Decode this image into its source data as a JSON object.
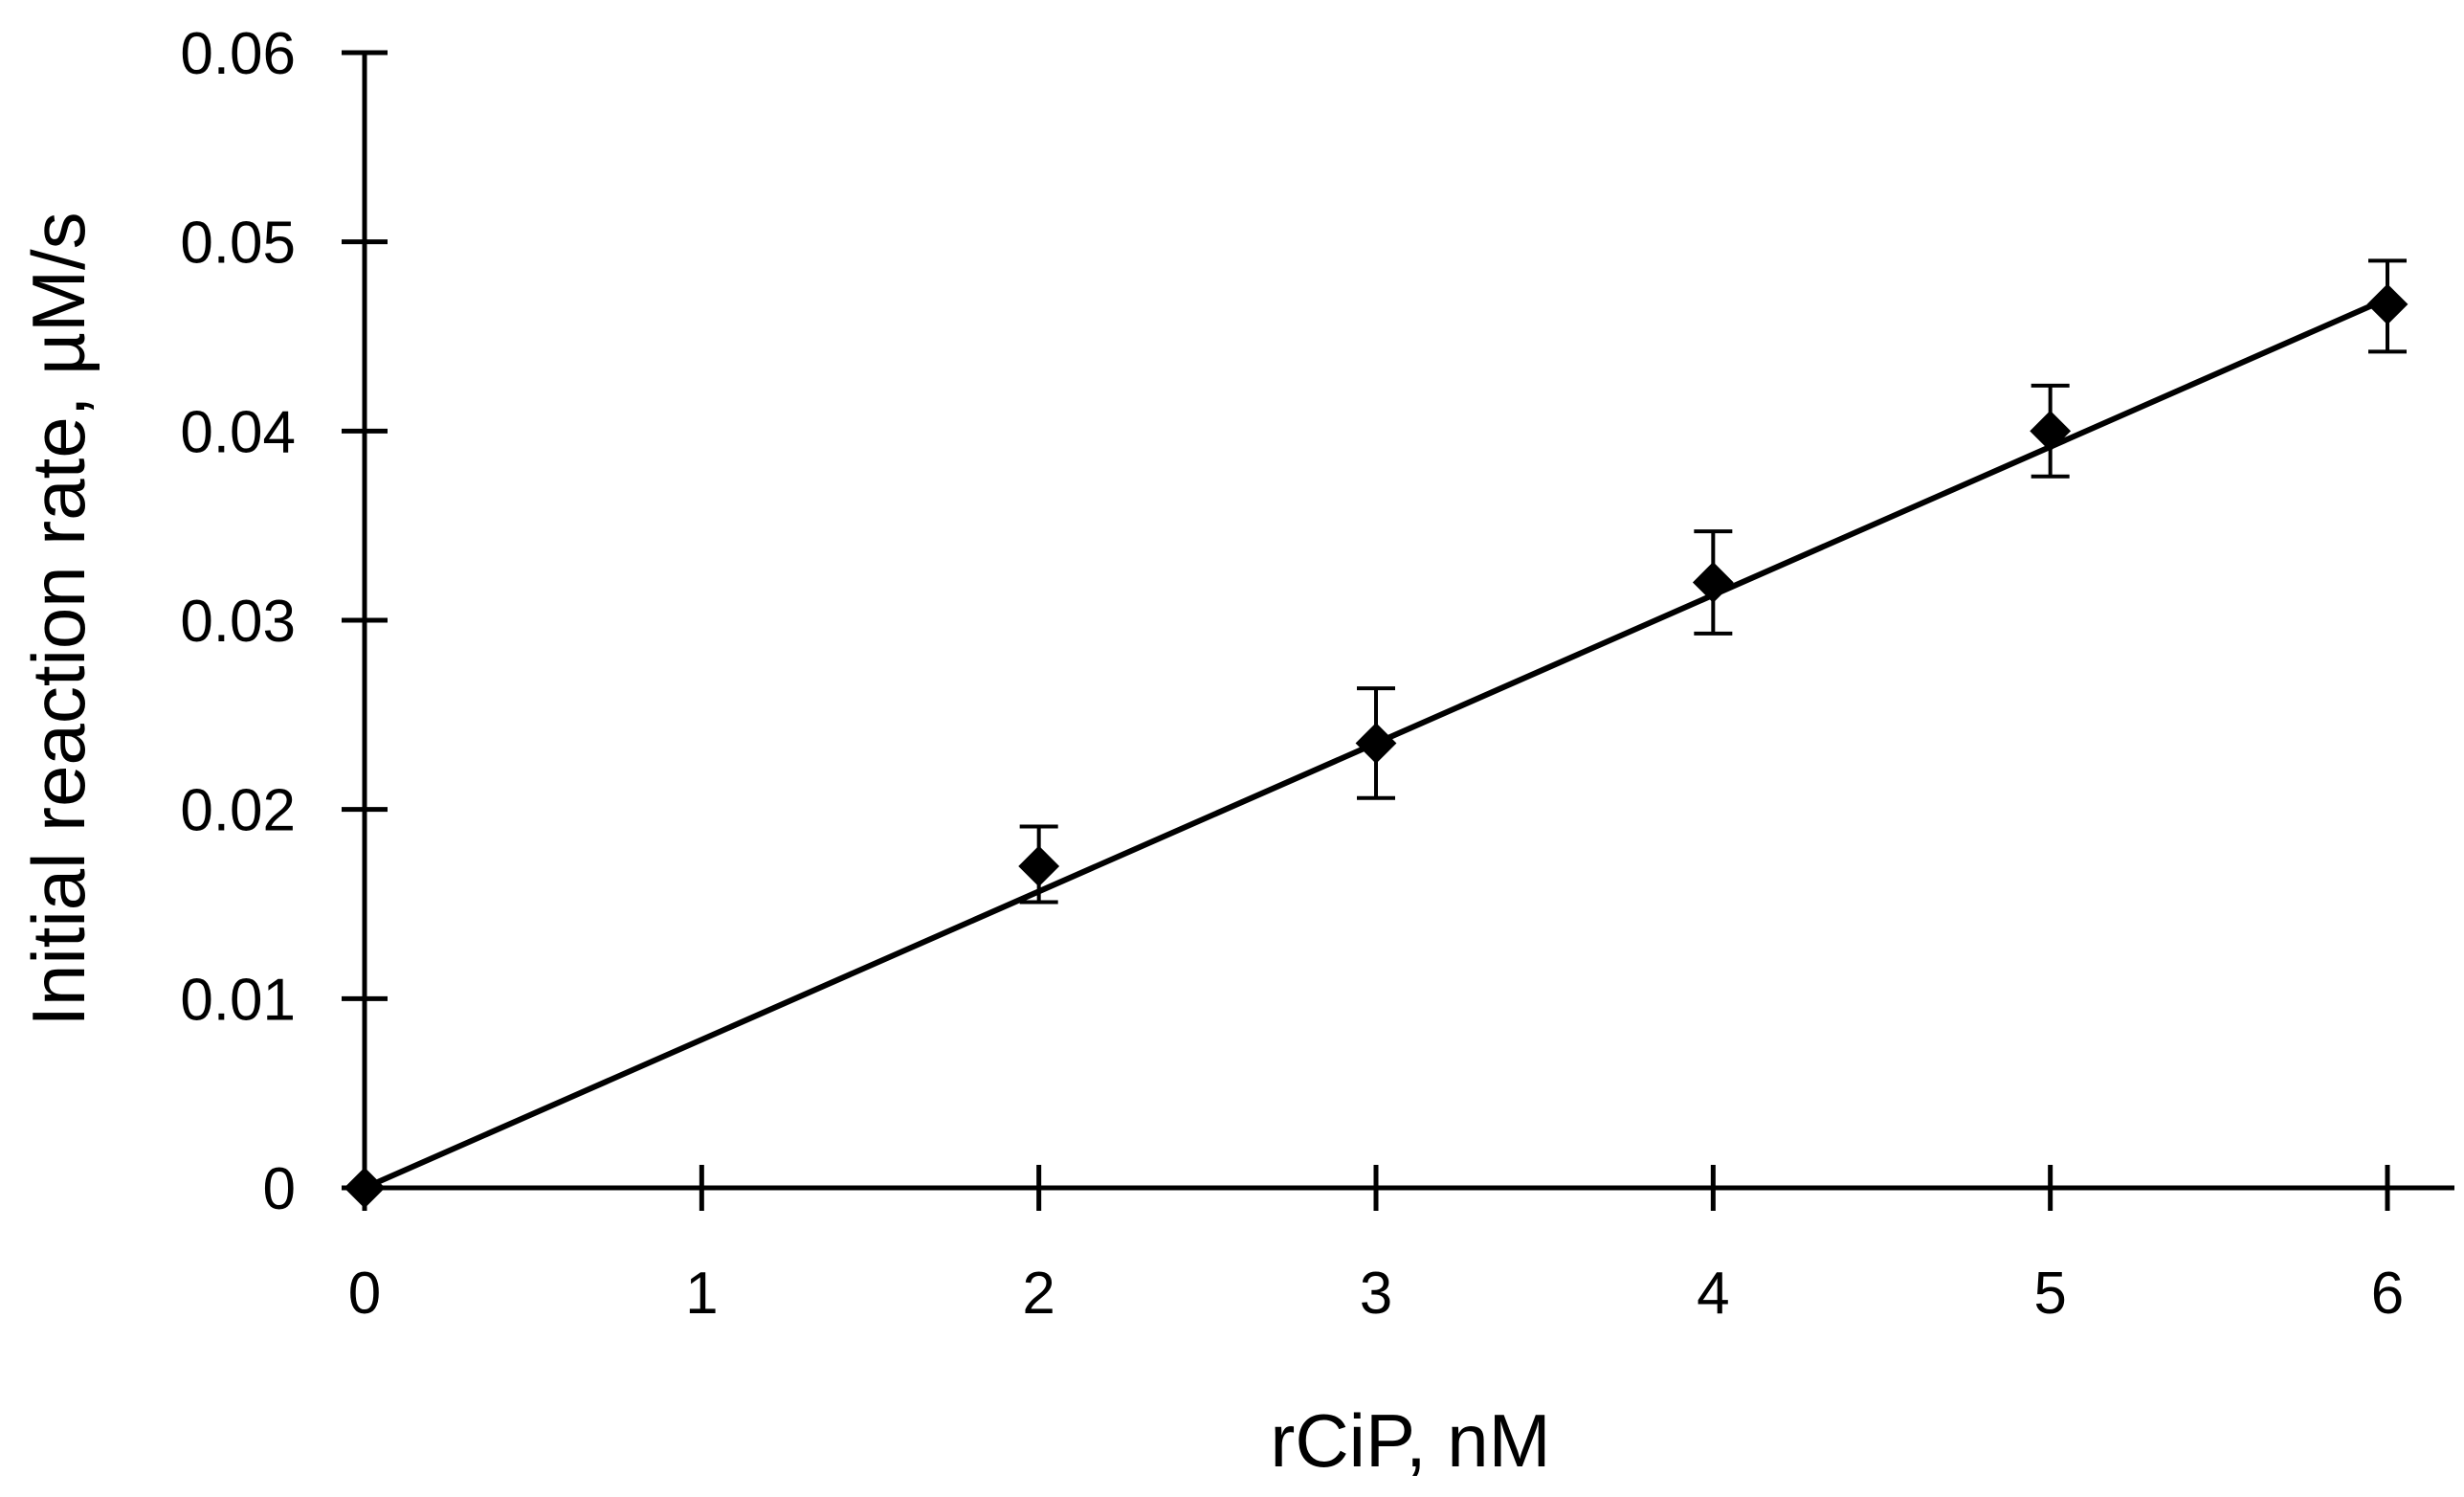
{
  "chart_data": {
    "type": "scatter",
    "title": "",
    "xlabel": "rCiP, nM",
    "ylabel": "Initial reaction rate, µM/s",
    "xlim": [
      0,
      6.2
    ],
    "ylim": [
      0,
      0.06
    ],
    "x_ticks": [
      0,
      1,
      2,
      3,
      4,
      5,
      6
    ],
    "x_tick_labels": [
      "0",
      "1",
      "2",
      "3",
      "4",
      "5",
      "6"
    ],
    "y_ticks": [
      0,
      0.01,
      0.02,
      0.03,
      0.04,
      0.05,
      0.06
    ],
    "y_tick_labels": [
      "0",
      "0.01",
      "0.02",
      "0.03",
      "0.04",
      "0.05",
      "0.06"
    ],
    "grid": false,
    "legend": "none",
    "series": [
      {
        "marker": "diamond",
        "color": "#000000",
        "x": [
          0,
          2,
          3,
          4,
          5,
          6
        ],
        "y": [
          0,
          0.017,
          0.0235,
          0.032,
          0.04,
          0.0467
        ],
        "error_low": [
          0,
          0.0019,
          0.0029,
          0.0027,
          0.0024,
          0.0025
        ],
        "error_high": [
          0,
          0.0021,
          0.0029,
          0.0027,
          0.0024,
          0.0023
        ]
      }
    ],
    "trendline": {
      "type": "linear",
      "color": "#000000",
      "x": [
        0,
        6
      ],
      "y": [
        0,
        0.047
      ]
    }
  }
}
